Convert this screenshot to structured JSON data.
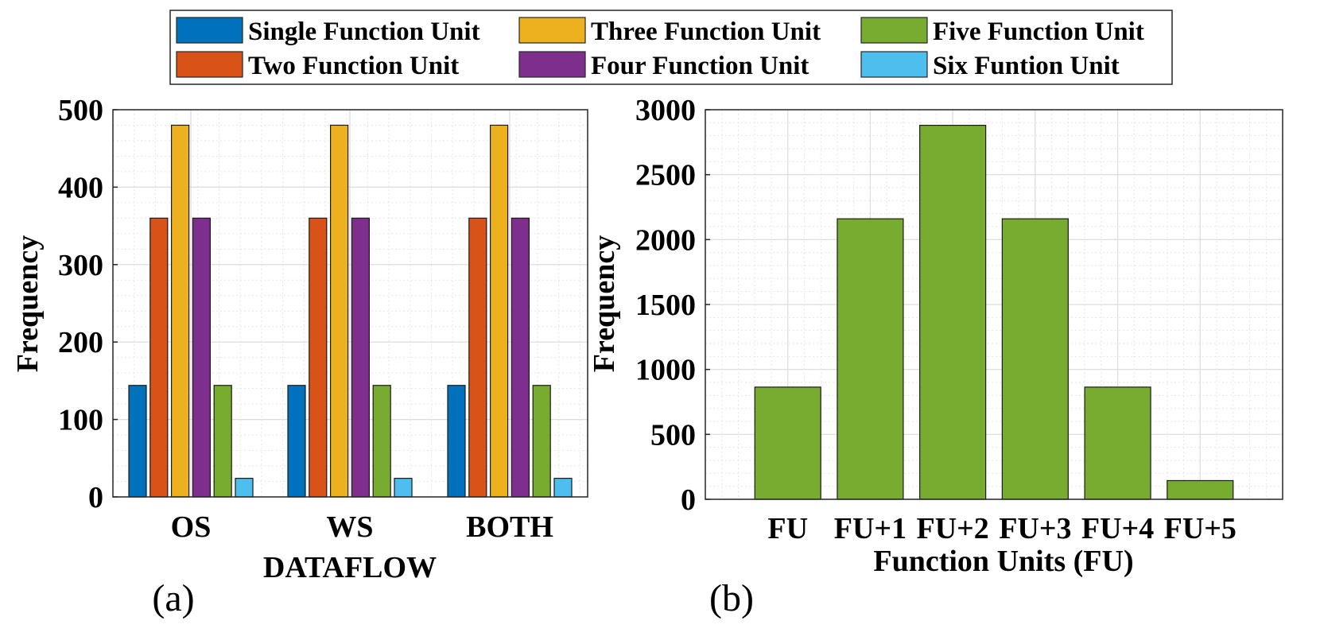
{
  "colors": {
    "single": "#0072BD",
    "two": "#D95319",
    "three": "#EDB120",
    "four": "#7E2F8E",
    "five": "#77AC30",
    "six": "#4DBEEE",
    "axis": "#262626",
    "grid_major": "#dcdcdc",
    "grid_minor": "#e6e6e6"
  },
  "legend": {
    "entries": [
      {
        "label": "Single Function Unit",
        "color_key": "single"
      },
      {
        "label": "Three Function Unit",
        "color_key": "three"
      },
      {
        "label": "Five Function Unit",
        "color_key": "five"
      },
      {
        "label": "Two Function Unit",
        "color_key": "two"
      },
      {
        "label": "Four Function Unit",
        "color_key": "four"
      },
      {
        "label": "Six Funtion Unit",
        "color_key": "six"
      }
    ]
  },
  "chart_data": [
    {
      "type": "bar",
      "panel_label": "(a)",
      "xlabel": "DATAFLOW",
      "ylabel": "Frequency",
      "categories": [
        "OS",
        "WS",
        "BOTH"
      ],
      "ylim": [
        0,
        500
      ],
      "yticks": [
        0,
        100,
        200,
        300,
        400,
        500
      ],
      "grid": true,
      "minor_grid": true,
      "legend_position": "top",
      "series": [
        {
          "name": "Single Function Unit",
          "color_key": "single",
          "values": [
            144,
            144,
            144
          ]
        },
        {
          "name": "Two Function Unit",
          "color_key": "two",
          "values": [
            360,
            360,
            360
          ]
        },
        {
          "name": "Three Function Unit",
          "color_key": "three",
          "values": [
            480,
            480,
            480
          ]
        },
        {
          "name": "Four Function Unit",
          "color_key": "four",
          "values": [
            360,
            360,
            360
          ]
        },
        {
          "name": "Five Function Unit",
          "color_key": "five",
          "values": [
            144,
            144,
            144
          ]
        },
        {
          "name": "Six Funtion Unit",
          "color_key": "six",
          "values": [
            24,
            24,
            24
          ]
        }
      ]
    },
    {
      "type": "bar",
      "panel_label": "(b)",
      "xlabel": "Function Units (FU)",
      "ylabel": "Frequency",
      "categories": [
        "FU",
        "FU+1",
        "FU+2",
        "FU+3",
        "FU+4",
        "FU+5"
      ],
      "xlim": [
        0,
        7
      ],
      "ylim": [
        0,
        3000
      ],
      "yticks": [
        0,
        500,
        1000,
        1500,
        2000,
        2500,
        3000
      ],
      "grid": true,
      "minor_grid": true,
      "series": [
        {
          "color_key": "five",
          "values": [
            864,
            2160,
            2880,
            2160,
            864,
            144
          ]
        }
      ]
    }
  ]
}
